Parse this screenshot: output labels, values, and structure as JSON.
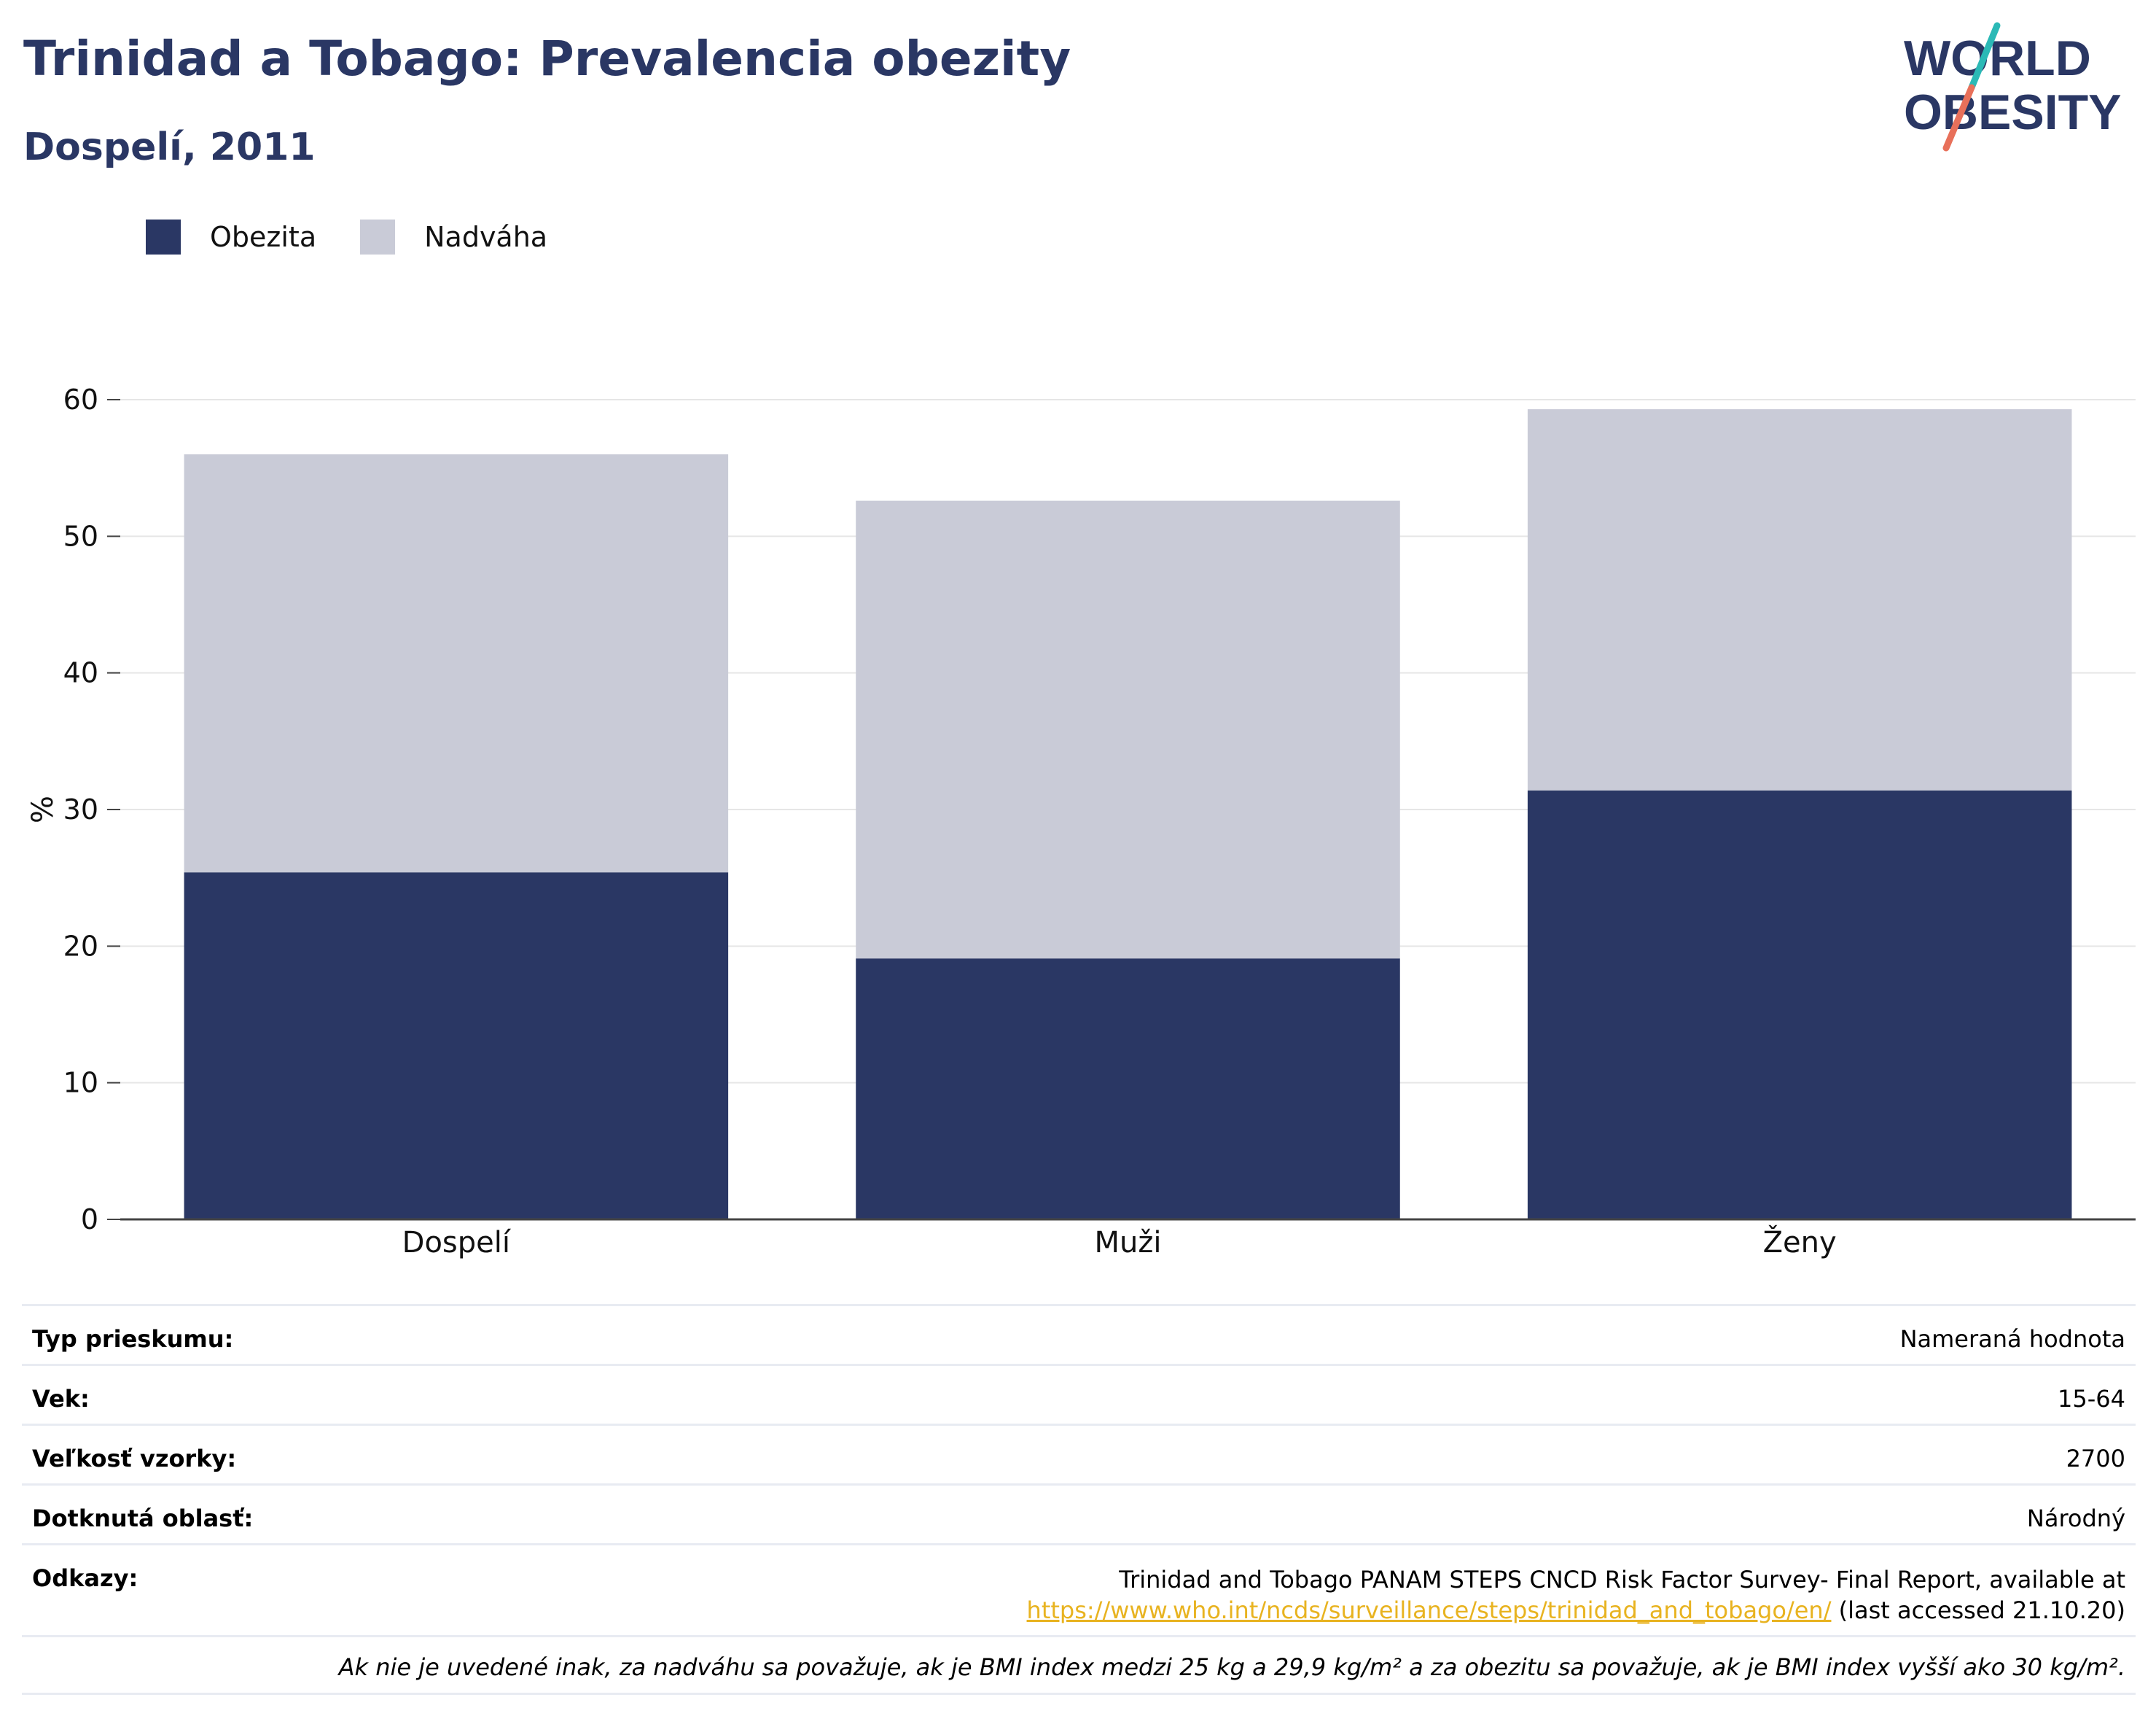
{
  "header": {
    "title": "Trinidad a Tobago: Prevalencia obezity",
    "subtitle": "Dospelí, 2011"
  },
  "logo": {
    "line1": "WORLD",
    "line2": "OBESITY",
    "accent_colors": [
      "#2bb9b6",
      "#e8705a"
    ],
    "text_color": "#2a3764"
  },
  "chart_data": {
    "type": "bar",
    "stacked": true,
    "categories": [
      "Dospelí",
      "Muži",
      "Ženy"
    ],
    "series": [
      {
        "name": "Obezita",
        "color": "#2a3764",
        "values": [
          25.4,
          19.1,
          31.4
        ]
      },
      {
        "name": "Nadváha",
        "color": "#c9cbd7",
        "values": [
          30.6,
          33.5,
          27.9
        ]
      }
    ],
    "ylabel": "%",
    "xlabel": "",
    "ylim": [
      0,
      60
    ],
    "yticks": [
      0,
      10,
      20,
      30,
      40,
      50,
      60
    ],
    "grid": true,
    "legend": "top-left"
  },
  "meta": {
    "rows": [
      {
        "key": "Typ prieskumu:",
        "value": "Nameraná hodnota"
      },
      {
        "key": "Vek:",
        "value": "15-64"
      },
      {
        "key": "Veľkosť vzorky:",
        "value": "2700"
      },
      {
        "key": "Dotknutá oblasť:",
        "value": "Národný"
      }
    ],
    "references": {
      "key": "Odkazy:",
      "line1": "Trinidad and Tobago PANAM STEPS CNCD Risk Factor Survey- Final Report, available at",
      "link": "https://www.who.int/ncds/surveillance/steps/trinidad_and_tobago/en/",
      "suffix": " (last accessed 21.10.20)"
    },
    "note": "Ak nie je uvedené inak, za nadváhu sa považuje, ak je BMI index medzi 25 kg a 29,9 kg/m² a za obezitu sa považuje, ak je BMI index vyšší ako 30 kg/m²."
  }
}
